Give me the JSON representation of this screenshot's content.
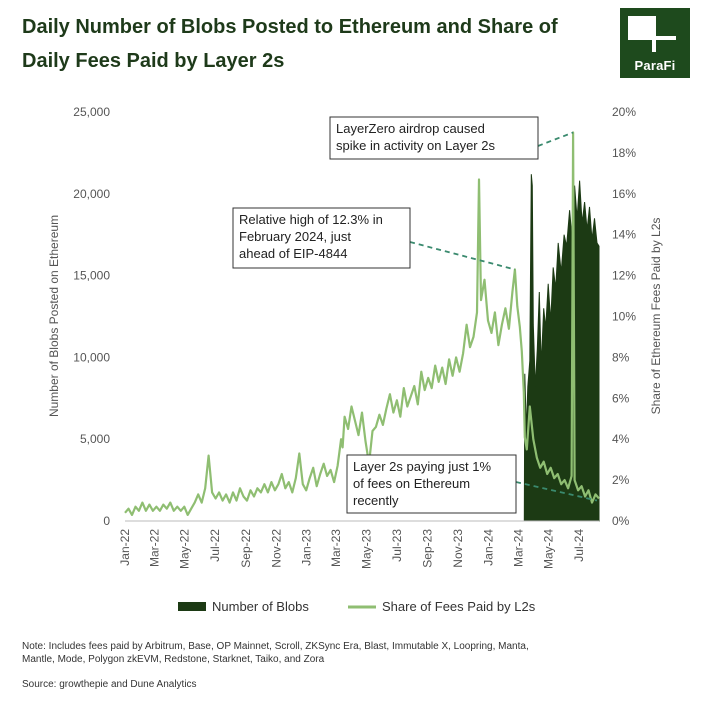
{
  "page": {
    "title": "Daily Number of Blobs Posted to Ethereum and Share of Daily Fees Paid by Layer 2s",
    "logo_text": "ParaFi",
    "note": "Note: Includes fees paid by Arbitrum, Base, OP Mainnet, Scroll, ZKSync Era, Blast, Immutable X, Loopring, Manta, Mantle, Mode, Polygon zkEVM, Redstone, Starknet, Taiko, and Zora",
    "source": "Source: growthepie and Dune Analytics"
  },
  "colors": {
    "title": "#1e3a1a",
    "blobs": "#1c3a14",
    "share": "#8fbe72",
    "annotation_line": "#3a8a6e",
    "axis_text": "#555555",
    "logo_bg": "#1e4a1d"
  },
  "chart_data": {
    "type": "area",
    "x_ticks": [
      "Jan-22",
      "Mar-22",
      "May-22",
      "Jul-22",
      "Sep-22",
      "Nov-22",
      "Jan-23",
      "Mar-23",
      "May-23",
      "Jul-23",
      "Sep-23",
      "Nov-23",
      "Jan-24",
      "Mar-24",
      "May-24",
      "Jul-24"
    ],
    "x_range": [
      "2022-01-01",
      "2024-08-10"
    ],
    "y_left": {
      "label": "Number of Blobs Posted on Ethereum",
      "range": [
        0,
        25000
      ],
      "ticks": [
        "0",
        "5,000",
        "10,000",
        "15,000",
        "20,000",
        "25,000"
      ]
    },
    "y_right": {
      "label": "Share of Ethereum Fees Paid by L2s",
      "range": [
        0,
        20
      ],
      "ticks": [
        "0%",
        "2%",
        "4%",
        "6%",
        "8%",
        "10%",
        "12%",
        "14%",
        "16%",
        "18%",
        "20%"
      ]
    },
    "series": [
      {
        "name": "Number of Blobs",
        "type": "area",
        "axis": "left",
        "points": [
          [
            "2024-03-13",
            0
          ],
          [
            "2024-03-14",
            9000
          ],
          [
            "2024-03-17",
            5500
          ],
          [
            "2024-03-20",
            8200
          ],
          [
            "2024-03-24",
            9800
          ],
          [
            "2024-03-27",
            21200
          ],
          [
            "2024-03-29",
            20500
          ],
          [
            "2024-03-31",
            12000
          ],
          [
            "2024-04-04",
            8200
          ],
          [
            "2024-04-08",
            10500
          ],
          [
            "2024-04-12",
            14000
          ],
          [
            "2024-04-16",
            9500
          ],
          [
            "2024-04-21",
            13000
          ],
          [
            "2024-04-25",
            11800
          ],
          [
            "2024-04-30",
            14500
          ],
          [
            "2024-05-05",
            12200
          ],
          [
            "2024-05-10",
            15500
          ],
          [
            "2024-05-15",
            14200
          ],
          [
            "2024-05-20",
            17000
          ],
          [
            "2024-05-26",
            15200
          ],
          [
            "2024-06-01",
            17500
          ],
          [
            "2024-06-06",
            16800
          ],
          [
            "2024-06-12",
            19000
          ],
          [
            "2024-06-17",
            17200
          ],
          [
            "2024-06-22",
            20500
          ],
          [
            "2024-06-27",
            18500
          ],
          [
            "2024-07-02",
            20800
          ],
          [
            "2024-07-07",
            18200
          ],
          [
            "2024-07-12",
            19500
          ],
          [
            "2024-07-17",
            17800
          ],
          [
            "2024-07-22",
            19200
          ],
          [
            "2024-07-27",
            17200
          ],
          [
            "2024-08-01",
            18500
          ],
          [
            "2024-08-06",
            17000
          ],
          [
            "2024-08-10",
            16800
          ]
        ]
      },
      {
        "name": "Share of Fees Paid by L2s",
        "type": "line",
        "axis": "right",
        "points": [
          [
            "2022-01-01",
            0.4
          ],
          [
            "2022-01-08",
            0.6
          ],
          [
            "2022-01-15",
            0.3
          ],
          [
            "2022-01-22",
            0.7
          ],
          [
            "2022-01-29",
            0.5
          ],
          [
            "2022-02-05",
            0.9
          ],
          [
            "2022-02-12",
            0.5
          ],
          [
            "2022-02-19",
            0.8
          ],
          [
            "2022-02-26",
            0.5
          ],
          [
            "2022-03-05",
            0.7
          ],
          [
            "2022-03-12",
            0.5
          ],
          [
            "2022-03-19",
            0.8
          ],
          [
            "2022-03-26",
            0.6
          ],
          [
            "2022-04-02",
            0.9
          ],
          [
            "2022-04-09",
            0.5
          ],
          [
            "2022-04-16",
            0.7
          ],
          [
            "2022-04-23",
            0.5
          ],
          [
            "2022-04-30",
            0.7
          ],
          [
            "2022-05-07",
            0.3
          ],
          [
            "2022-05-14",
            0.6
          ],
          [
            "2022-05-21",
            0.9
          ],
          [
            "2022-05-28",
            1.3
          ],
          [
            "2022-06-04",
            0.9
          ],
          [
            "2022-06-11",
            1.6
          ],
          [
            "2022-06-18",
            3.2
          ],
          [
            "2022-06-25",
            1.4
          ],
          [
            "2022-07-02",
            1.1
          ],
          [
            "2022-07-09",
            1.4
          ],
          [
            "2022-07-16",
            1.0
          ],
          [
            "2022-07-23",
            1.3
          ],
          [
            "2022-07-30",
            0.9
          ],
          [
            "2022-08-06",
            1.4
          ],
          [
            "2022-08-13",
            1.0
          ],
          [
            "2022-08-20",
            1.6
          ],
          [
            "2022-08-27",
            1.2
          ],
          [
            "2022-09-03",
            1.0
          ],
          [
            "2022-09-10",
            1.5
          ],
          [
            "2022-09-17",
            1.2
          ],
          [
            "2022-09-24",
            1.6
          ],
          [
            "2022-10-01",
            1.4
          ],
          [
            "2022-10-08",
            1.8
          ],
          [
            "2022-10-15",
            1.4
          ],
          [
            "2022-10-22",
            1.9
          ],
          [
            "2022-10-29",
            1.5
          ],
          [
            "2022-11-05",
            1.8
          ],
          [
            "2022-11-12",
            2.3
          ],
          [
            "2022-11-19",
            1.6
          ],
          [
            "2022-11-26",
            1.9
          ],
          [
            "2022-12-03",
            1.4
          ],
          [
            "2022-12-10",
            2.1
          ],
          [
            "2022-12-17",
            3.3
          ],
          [
            "2022-12-24",
            1.8
          ],
          [
            "2022-12-31",
            1.5
          ],
          [
            "2023-01-07",
            2.1
          ],
          [
            "2023-01-14",
            2.6
          ],
          [
            "2023-01-21",
            1.7
          ],
          [
            "2023-01-28",
            2.3
          ],
          [
            "2023-02-04",
            2.8
          ],
          [
            "2023-02-11",
            2.2
          ],
          [
            "2023-02-18",
            2.5
          ],
          [
            "2023-02-25",
            1.9
          ],
          [
            "2023-03-04",
            2.7
          ],
          [
            "2023-03-11",
            4.0
          ],
          [
            "2023-03-14",
            3.6
          ],
          [
            "2023-03-18",
            5.1
          ],
          [
            "2023-03-25",
            4.5
          ],
          [
            "2023-04-01",
            5.6
          ],
          [
            "2023-04-08",
            4.9
          ],
          [
            "2023-04-15",
            4.2
          ],
          [
            "2023-04-22",
            5.3
          ],
          [
            "2023-04-29",
            3.9
          ],
          [
            "2023-05-06",
            2.8
          ],
          [
            "2023-05-13",
            4.4
          ],
          [
            "2023-05-20",
            4.6
          ],
          [
            "2023-05-27",
            5.2
          ],
          [
            "2023-06-03",
            4.7
          ],
          [
            "2023-06-10",
            5.5
          ],
          [
            "2023-06-17",
            6.2
          ],
          [
            "2023-06-24",
            5.3
          ],
          [
            "2023-07-01",
            5.9
          ],
          [
            "2023-07-08",
            5.1
          ],
          [
            "2023-07-15",
            6.5
          ],
          [
            "2023-07-22",
            5.6
          ],
          [
            "2023-07-29",
            6.1
          ],
          [
            "2023-08-05",
            6.6
          ],
          [
            "2023-08-12",
            5.7
          ],
          [
            "2023-08-19",
            7.3
          ],
          [
            "2023-08-26",
            6.4
          ],
          [
            "2023-09-02",
            7.0
          ],
          [
            "2023-09-09",
            6.5
          ],
          [
            "2023-09-16",
            7.6
          ],
          [
            "2023-09-23",
            6.8
          ],
          [
            "2023-09-30",
            7.5
          ],
          [
            "2023-10-07",
            6.7
          ],
          [
            "2023-10-14",
            7.9
          ],
          [
            "2023-10-21",
            7.1
          ],
          [
            "2023-10-28",
            8.0
          ],
          [
            "2023-11-04",
            7.3
          ],
          [
            "2023-11-11",
            8.2
          ],
          [
            "2023-11-18",
            9.6
          ],
          [
            "2023-11-25",
            8.5
          ],
          [
            "2023-12-02",
            9.0
          ],
          [
            "2023-12-09",
            10.2
          ],
          [
            "2023-12-13",
            16.7
          ],
          [
            "2023-12-17",
            10.8
          ],
          [
            "2023-12-24",
            11.8
          ],
          [
            "2023-12-31",
            9.8
          ],
          [
            "2024-01-07",
            9.2
          ],
          [
            "2024-01-14",
            10.2
          ],
          [
            "2024-01-21",
            8.6
          ],
          [
            "2024-01-28",
            9.6
          ],
          [
            "2024-02-04",
            10.4
          ],
          [
            "2024-02-11",
            9.4
          ],
          [
            "2024-02-18",
            11.2
          ],
          [
            "2024-02-23",
            12.3
          ],
          [
            "2024-02-28",
            10.5
          ],
          [
            "2024-03-04",
            9.5
          ],
          [
            "2024-03-08",
            8.3
          ],
          [
            "2024-03-12",
            6.3
          ],
          [
            "2024-03-14",
            4.1
          ],
          [
            "2024-03-18",
            3.5
          ],
          [
            "2024-03-24",
            5.6
          ],
          [
            "2024-03-31",
            4.0
          ],
          [
            "2024-04-07",
            3.1
          ],
          [
            "2024-04-14",
            2.6
          ],
          [
            "2024-04-21",
            2.9
          ],
          [
            "2024-04-28",
            2.3
          ],
          [
            "2024-05-05",
            2.6
          ],
          [
            "2024-05-12",
            2.1
          ],
          [
            "2024-05-19",
            2.3
          ],
          [
            "2024-05-26",
            1.8
          ],
          [
            "2024-06-02",
            2.0
          ],
          [
            "2024-06-09",
            1.6
          ],
          [
            "2024-06-16",
            2.2
          ],
          [
            "2024-06-19",
            19.0
          ],
          [
            "2024-06-22",
            2.0
          ],
          [
            "2024-06-29",
            1.5
          ],
          [
            "2024-07-06",
            1.7
          ],
          [
            "2024-07-13",
            1.2
          ],
          [
            "2024-07-20",
            1.5
          ],
          [
            "2024-07-27",
            0.9
          ],
          [
            "2024-08-03",
            1.3
          ],
          [
            "2024-08-10",
            1.1
          ]
        ]
      }
    ],
    "annotations": [
      {
        "text": "LayerZero airdrop caused spike in activity on Layer 2s",
        "lines": [
          "LayerZero airdrop caused",
          "spike in activity on Layer 2s"
        ],
        "target": [
          "2024-06-19",
          19.0
        ]
      },
      {
        "text": "Relative high of 12.3% in February 2024, just ahead of EIP-4844",
        "lines": [
          "Relative high of 12.3% in",
          "February 2024, just",
          "ahead of EIP-4844"
        ],
        "target": [
          "2024-02-23",
          12.3
        ]
      },
      {
        "text": "Layer 2s paying just 1% of fees on Ethereum recently",
        "lines": [
          "Layer 2s paying just 1%",
          "of fees on Ethereum",
          "recently"
        ],
        "target": [
          "2024-08-06",
          1.0
        ]
      }
    ],
    "legend": {
      "position": "bottom",
      "items": [
        "Number of Blobs",
        "Share of Fees Paid by L2s"
      ]
    },
    "grid": false
  }
}
